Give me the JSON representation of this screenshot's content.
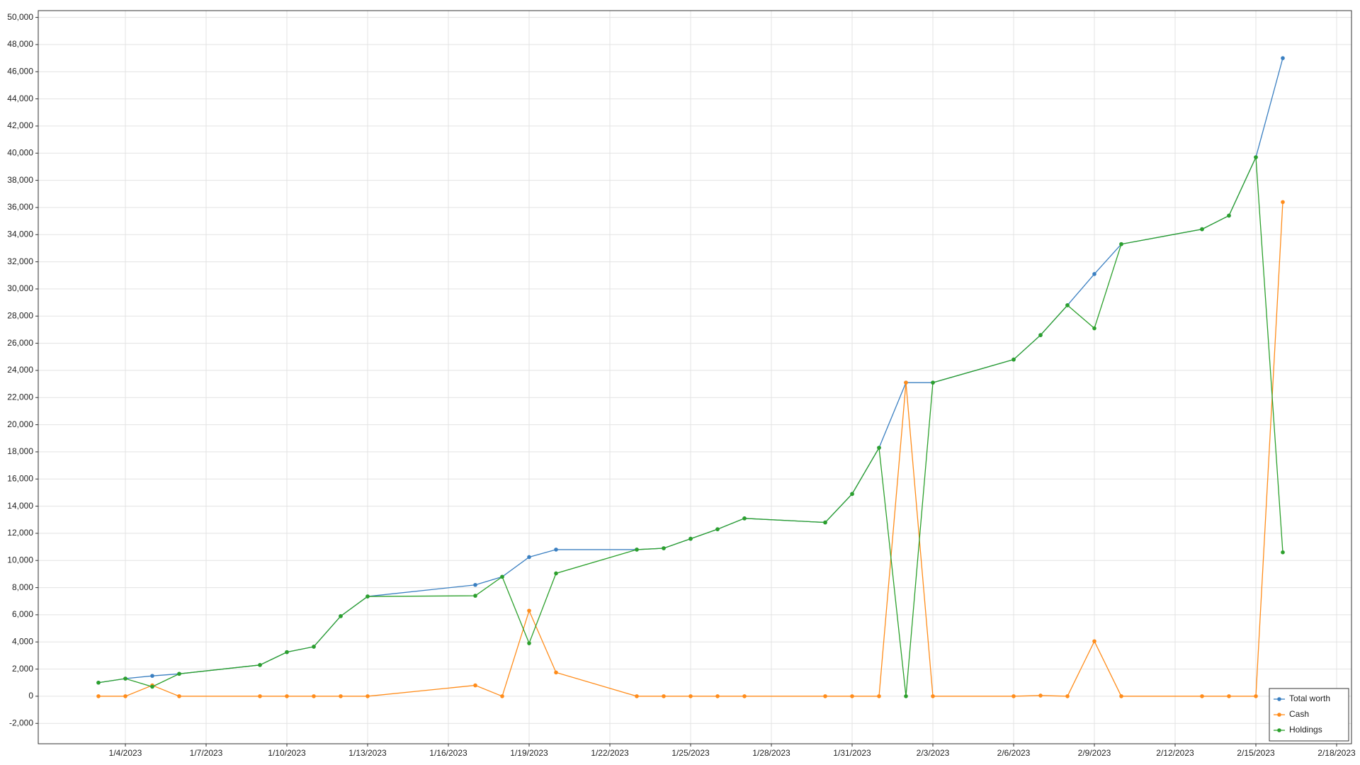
{
  "chart_data": {
    "type": "line",
    "x": [
      "1/3/2023",
      "1/4/2023",
      "1/5/2023",
      "1/6/2023",
      "1/9/2023",
      "1/10/2023",
      "1/11/2023",
      "1/12/2023",
      "1/13/2023",
      "1/17/2023",
      "1/18/2023",
      "1/19/2023",
      "1/20/2023",
      "1/23/2023",
      "1/24/2023",
      "1/25/2023",
      "1/26/2023",
      "1/27/2023",
      "1/30/2023",
      "1/31/2023",
      "2/1/2023",
      "2/2/2023",
      "2/3/2023",
      "2/6/2023",
      "2/7/2023",
      "2/8/2023",
      "2/9/2023",
      "2/10/2023",
      "2/13/2023",
      "2/14/2023",
      "2/15/2023",
      "2/16/2023"
    ],
    "series": [
      {
        "name": "Total worth",
        "color": "#3a7fc1",
        "values": [
          1000,
          1300,
          1500,
          1650,
          2300,
          3250,
          3650,
          5900,
          7350,
          8200,
          8800,
          10250,
          10800,
          10800,
          10900,
          11600,
          12300,
          13100,
          12800,
          14900,
          18300,
          23100,
          23100,
          24800,
          26600,
          28800,
          31100,
          33300,
          34400,
          35400,
          39700,
          47000
        ]
      },
      {
        "name": "Cash",
        "color": "#ff8c1a",
        "values": [
          0,
          0,
          800,
          0,
          0,
          0,
          0,
          0,
          0,
          800,
          0,
          6300,
          1750,
          0,
          0,
          0,
          0,
          0,
          0,
          0,
          0,
          23100,
          0,
          0,
          50,
          0,
          4050,
          0,
          0,
          0,
          0,
          36400
        ]
      },
      {
        "name": "Holdings",
        "color": "#2ca02c",
        "values": [
          1000,
          1300,
          700,
          1650,
          2300,
          3250,
          3650,
          5900,
          7350,
          7400,
          8800,
          3900,
          9050,
          10800,
          10900,
          11600,
          12300,
          13100,
          12800,
          14900,
          18300,
          0,
          23100,
          24800,
          26600,
          28800,
          27100,
          33300,
          34400,
          35400,
          39700,
          10600
        ]
      }
    ],
    "xlim": [
      "1/1/2023",
      "2/18/2023"
    ],
    "xticks": [
      "1/4/2023",
      "1/7/2023",
      "1/10/2023",
      "1/13/2023",
      "1/16/2023",
      "1/19/2023",
      "1/22/2023",
      "1/25/2023",
      "1/28/2023",
      "1/31/2023",
      "2/3/2023",
      "2/6/2023",
      "2/9/2023",
      "2/12/2023",
      "2/15/2023",
      "2/18/2023"
    ],
    "ylim": [
      -3500,
      50500
    ],
    "yticks": [
      {
        "value": -2000,
        "label": "-2,000"
      },
      0,
      {
        "value": 2000,
        "label": "2,000"
      },
      {
        "value": 4000,
        "label": "4,000"
      },
      {
        "value": 6000,
        "label": "6,000"
      },
      {
        "value": 8000,
        "label": "8,000"
      },
      {
        "value": 10000,
        "label": "10,000"
      },
      {
        "value": 12000,
        "label": "12,000"
      },
      {
        "value": 14000,
        "label": "14,000"
      },
      {
        "value": 16000,
        "label": "16,000"
      },
      {
        "value": 18000,
        "label": "18,000"
      },
      {
        "value": 20000,
        "label": "20,000"
      },
      {
        "value": 22000,
        "label": "22,000"
      },
      {
        "value": 24000,
        "label": "24,000"
      },
      {
        "value": 26000,
        "label": "26,000"
      },
      {
        "value": 28000,
        "label": "28,000"
      },
      {
        "value": 30000,
        "label": "30,000"
      },
      {
        "value": 32000,
        "label": "32,000"
      },
      {
        "value": 34000,
        "label": "34,000"
      },
      {
        "value": 36000,
        "label": "36,000"
      },
      {
        "value": 38000,
        "label": "38,000"
      },
      {
        "value": 40000,
        "label": "40,000"
      },
      {
        "value": 42000,
        "label": "42,000"
      },
      {
        "value": 44000,
        "label": "44,000"
      },
      {
        "value": 46000,
        "label": "46,000"
      },
      {
        "value": 48000,
        "label": "48,000"
      },
      {
        "value": 50000,
        "label": "50,000"
      }
    ],
    "grid": true,
    "legend": "bottom-right"
  }
}
